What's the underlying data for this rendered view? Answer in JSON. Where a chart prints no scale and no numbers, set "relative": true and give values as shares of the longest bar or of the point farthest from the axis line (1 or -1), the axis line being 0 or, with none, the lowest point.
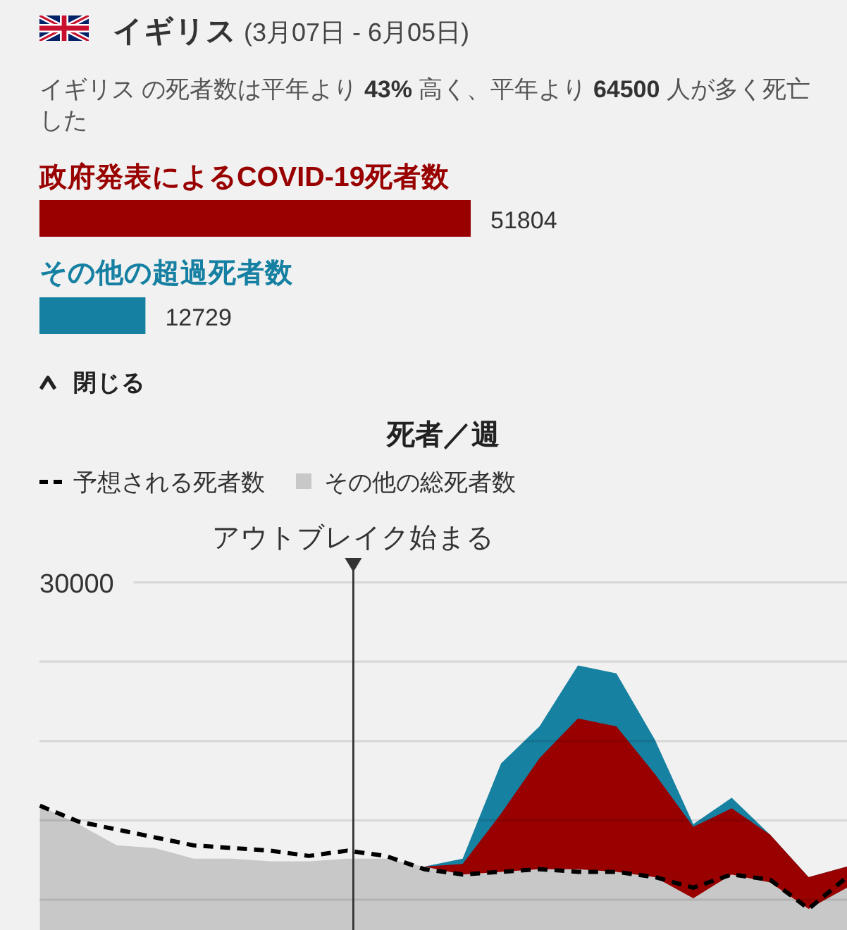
{
  "chart_data": [
    {
      "type": "bar",
      "orientation": "horizontal",
      "title": "イギリス (3月07日 - 6月05日)",
      "subtitle": "イギリス の死者数は平年より 43% 高く、平年より 64500 人が多く死亡した",
      "categories": [
        "政府発表によるCOVID-19死者数",
        "その他の超過死者数"
      ],
      "values": [
        51804,
        12729
      ],
      "colors": [
        "#990000",
        "#1680a2"
      ],
      "data_labels": true,
      "annotations": [
        "閉じる"
      ]
    },
    {
      "type": "area",
      "relative": true,
      "title": "死者／週",
      "legend": "top left",
      "annotations": [
        "アウトブレイク始まる",
        "30000"
      ],
      "categories": [
        null,
        null,
        null,
        null,
        null,
        null,
        null,
        null,
        null,
        null,
        null,
        null,
        null,
        null,
        null,
        null,
        null,
        null,
        null,
        null,
        null,
        null
      ],
      "series": [
        {
          "name": "予想される死者数",
          "type": "line",
          "line_style": "dashed",
          "color": "#000000",
          "values": [
            0.47,
            0.41,
            0.38,
            0.35,
            0.32,
            0.31,
            0.3,
            0.28,
            0.3,
            0.28,
            0.23,
            0.21,
            0.22,
            0.23,
            0.22,
            0.22,
            0.2,
            0.16,
            0.21,
            0.19,
            0.08,
            0.2
          ]
        },
        {
          "color": "#1681a1",
          "values": [
            null,
            null,
            null,
            null,
            null,
            null,
            null,
            null,
            null,
            null,
            0.24,
            0.27,
            0.63,
            0.77,
            1.0,
            0.97,
            0.72,
            0.4,
            0.5,
            0.36,
            0.2,
            0.24
          ]
        },
        {
          "color": "#990000",
          "values": [
            null,
            null,
            null,
            null,
            null,
            null,
            null,
            null,
            null,
            null,
            0.24,
            0.25,
            0.44,
            0.65,
            0.8,
            0.77,
            0.59,
            0.39,
            0.46,
            0.36,
            0.2,
            0.24
          ]
        },
        {
          "name": "その他の総死者数",
          "color": "#c8c8c8",
          "values": [
            0.47,
            0.4,
            0.32,
            0.31,
            0.27,
            0.27,
            0.26,
            0.26,
            0.27,
            0.27,
            0.24,
            0.21,
            0.22,
            0.23,
            0.23,
            0.22,
            0.2,
            0.12,
            0.21,
            0.18,
            0.08,
            0.16
          ]
        }
      ]
    }
  ]
}
